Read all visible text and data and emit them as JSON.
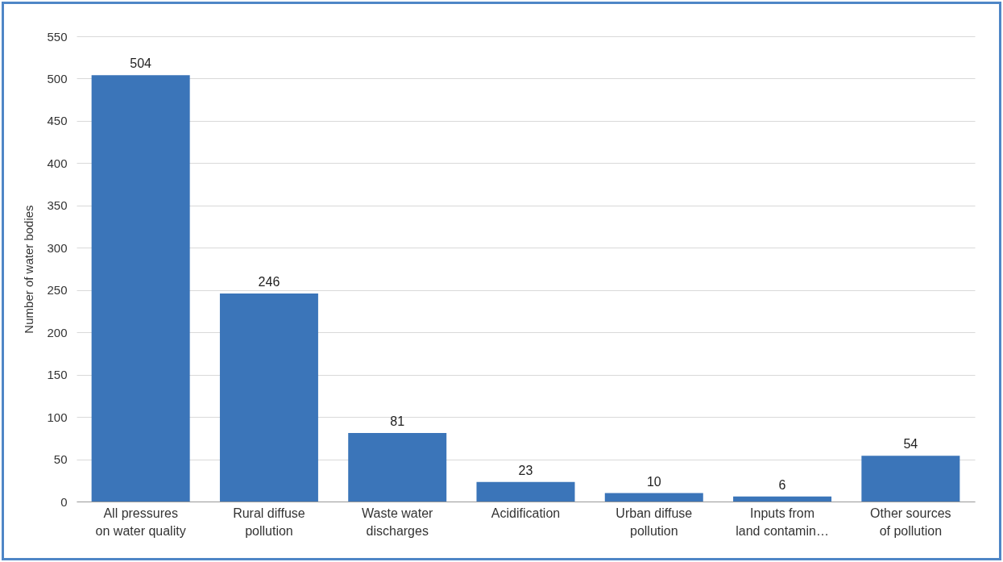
{
  "chart_data": {
    "type": "bar",
    "ylabel": "Number of water bodies",
    "categories": [
      "All pressures on water quality",
      "Rural diffuse pollution",
      "Waste water discharges",
      "Acidification",
      "Urban diffuse pollution",
      "Inputs from land contamin…",
      "Other sources of pollution"
    ],
    "values": [
      504,
      246,
      81,
      23,
      10,
      6,
      54
    ],
    "color": "#3b75b9",
    "ylim": [
      0,
      550
    ],
    "yticks": [
      0,
      50,
      100,
      150,
      200,
      250,
      300,
      350,
      400,
      450,
      500,
      550
    ],
    "grid": "y",
    "data_labels": true
  }
}
